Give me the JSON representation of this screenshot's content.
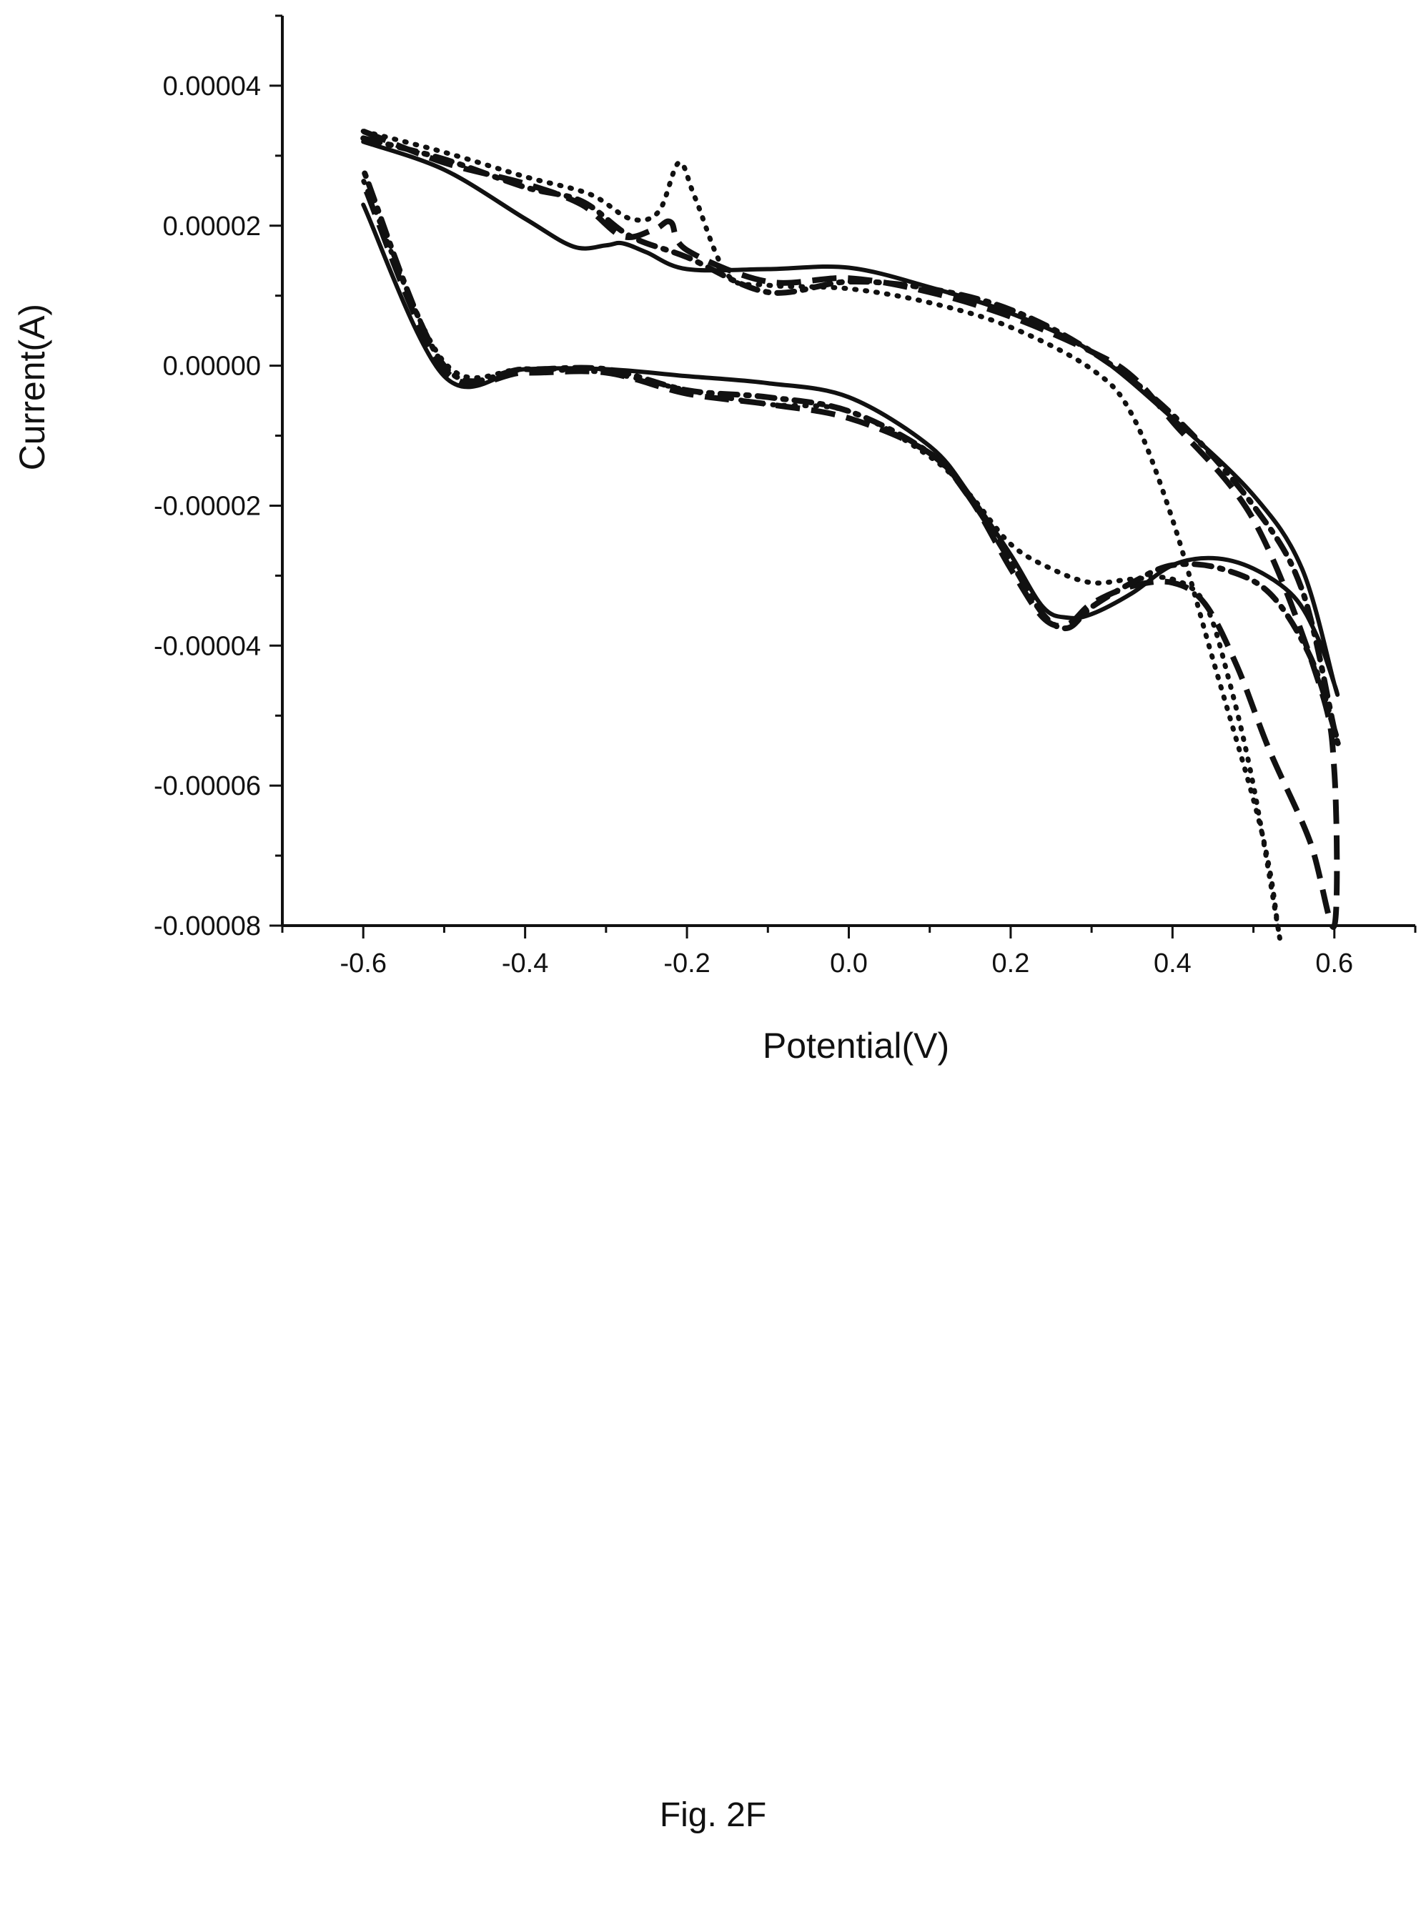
{
  "figure": {
    "caption": "Fig. 2F"
  },
  "chart_data": {
    "type": "line",
    "title": "",
    "xlabel": "Potential(V)",
    "ylabel": "Current(A)",
    "xlim": [
      -0.7,
      0.7
    ],
    "ylim": [
      -8e-05,
      5e-05
    ],
    "xticks": [
      -0.6,
      -0.4,
      -0.2,
      0.0,
      0.2,
      0.4,
      0.6
    ],
    "xtick_labels": [
      "-0.6",
      "-0.4",
      "-0.2",
      "0.0",
      "0.2",
      "0.4",
      "0.6"
    ],
    "yticks": [
      4e-05,
      2e-05,
      0.0,
      -2e-05,
      -4e-05,
      -6e-05,
      -8e-05
    ],
    "ytick_labels": [
      "0.00004",
      "0.00002",
      "0.00000",
      "-0.00002",
      "-0.00004",
      "-0.00006",
      "-0.00008"
    ],
    "grid": false,
    "legend": "none",
    "series": [
      {
        "style": "solid",
        "x": [
          -0.6,
          -0.5,
          -0.4,
          -0.34,
          -0.3,
          -0.28,
          -0.25,
          -0.2,
          -0.1,
          0.0,
          0.1,
          0.2,
          0.3,
          0.4,
          0.5,
          0.56,
          0.6,
          0.6,
          0.58,
          0.55,
          0.5,
          0.45,
          0.4,
          0.35,
          0.3,
          0.27,
          0.24,
          0.2,
          0.15,
          0.1,
          0.0,
          -0.1,
          -0.2,
          -0.3,
          -0.4,
          -0.5,
          -0.6
        ],
        "y": [
          3.2e-05,
          2.8e-05,
          2.1e-05,
          1.7e-05,
          1.72e-05,
          1.75e-05,
          1.62e-05,
          1.38e-05,
          1.38e-05,
          1.4e-05,
          1.12e-05,
          7.5e-06,
          2e-06,
          -7.5e-06,
          -1.85e-05,
          -2.9e-05,
          -4.55e-05,
          -4.55e-05,
          -3.9e-05,
          -3.3e-05,
          -2.9e-05,
          -2.75e-05,
          -2.85e-05,
          -3.25e-05,
          -3.55e-05,
          -3.6e-05,
          -3.45e-05,
          -2.7e-05,
          -1.85e-05,
          -1.15e-05,
          -4.5e-06,
          -2.5e-06,
          -1.5e-06,
          -5e-07,
          -5e-07,
          -1.5e-06,
          2.3e-05
        ]
      },
      {
        "style": "dashed",
        "x": [
          -0.6,
          -0.5,
          -0.4,
          -0.33,
          -0.28,
          -0.24,
          -0.22,
          -0.2,
          -0.1,
          0.0,
          0.1,
          0.2,
          0.3,
          0.35,
          0.4,
          0.5,
          0.58,
          0.6,
          0.6,
          0.57,
          0.52,
          0.48,
          0.44,
          0.4,
          0.35,
          0.3,
          0.27,
          0.24,
          0.2,
          0.15,
          0.1,
          0.0,
          -0.1,
          -0.2,
          -0.3,
          -0.4,
          -0.5,
          -0.6
        ],
        "y": [
          3.35e-05,
          2.9e-05,
          2.6e-05,
          2.3e-05,
          1.85e-05,
          1.95e-05,
          2.05e-05,
          1.65e-05,
          1.2e-05,
          1.25e-05,
          1.05e-05,
          7e-06,
          2e-06,
          -1.5e-06,
          -8e-06,
          -2.2e-05,
          -4.5e-05,
          -5.8e-05,
          -8e-05,
          -6.8e-05,
          -5.5e-05,
          -4.3e-05,
          -3.4e-05,
          -3.1e-05,
          -3.15e-05,
          -3.4e-05,
          -3.7e-05,
          -3.6e-05,
          -2.9e-05,
          -1.9e-05,
          -1.25e-05,
          -7.5e-06,
          -5.5e-06,
          -4e-06,
          -1e-06,
          -1e-06,
          -5e-07,
          2.6e-05
        ]
      },
      {
        "style": "dotted",
        "x": [
          -0.6,
          -0.5,
          -0.4,
          -0.32,
          -0.27,
          -0.235,
          -0.21,
          -0.19,
          -0.15,
          -0.1,
          0.0,
          0.1,
          0.2,
          0.3,
          0.35,
          0.4,
          0.45,
          0.5,
          0.52,
          0.53,
          0.53,
          0.5,
          0.47,
          0.44,
          0.4,
          0.35,
          0.3,
          0.25,
          0.2,
          0.15,
          0.1,
          0.0,
          -0.1,
          -0.2,
          -0.3,
          -0.4,
          -0.5,
          -0.6
        ],
        "y": [
          3.35e-05,
          3.05e-05,
          2.7e-05,
          2.45e-05,
          2.1e-05,
          2.2e-05,
          2.9e-05,
          2.4e-05,
          1.3e-05,
          1.15e-05,
          1.1e-05,
          9e-06,
          5.5e-06,
          -5e-07,
          -7e-06,
          -2.2e-05,
          -4.2e-05,
          -6.2e-05,
          -7.2e-05,
          -8e-05,
          -8e-05,
          -6e-05,
          -4.5e-05,
          -3.4e-05,
          -3.05e-05,
          -3.05e-05,
          -3.1e-05,
          -2.9e-05,
          -2.55e-05,
          -1.85e-05,
          -1.3e-05,
          -6.5e-06,
          -5.5e-06,
          -3.5e-06,
          -1e-06,
          -5e-07,
          5e-07,
          2.65e-05
        ]
      },
      {
        "style": "dash-dot",
        "x": [
          -0.6,
          -0.5,
          -0.4,
          -0.33,
          -0.27,
          -0.2,
          -0.1,
          0.0,
          0.1,
          0.2,
          0.3,
          0.4,
          0.5,
          0.56,
          0.6,
          0.6,
          0.57,
          0.52,
          0.46,
          0.4,
          0.35,
          0.3,
          0.27,
          0.24,
          0.2,
          0.15,
          0.1,
          0.0,
          -0.1,
          -0.2,
          -0.3,
          -0.4,
          -0.5,
          -0.6
        ],
        "y": [
          3.25e-05,
          2.95e-05,
          2.55e-05,
          2.35e-05,
          1.85e-05,
          1.55e-05,
          1.05e-05,
          1.2e-05,
          1.1e-05,
          8e-06,
          2e-06,
          -7e-06,
          -2e-05,
          -3.2e-05,
          -5.2e-05,
          -5.2e-05,
          -4.15e-05,
          -3.25e-05,
          -2.9e-05,
          -2.85e-05,
          -3.1e-05,
          -3.45e-05,
          -3.75e-05,
          -3.55e-05,
          -2.8e-05,
          -1.9e-05,
          -1.25e-05,
          -6.5e-06,
          -4.5e-06,
          -3.5e-06,
          -5e-07,
          -5e-07,
          0.0,
          2.8e-05
        ]
      }
    ]
  }
}
